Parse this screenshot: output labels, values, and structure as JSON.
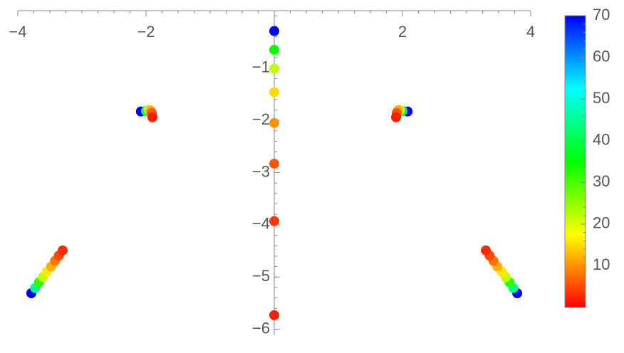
{
  "chart_data": {
    "type": "scatter",
    "xlim": [
      -4,
      4
    ],
    "ylim": [
      -6.1,
      0.1
    ],
    "xticks": [
      {
        "value": -4,
        "label": "−4"
      },
      {
        "value": -2,
        "label": "−2"
      },
      2,
      4
    ],
    "yticks": [
      {
        "value": -1,
        "label": "−1"
      },
      {
        "value": -2,
        "label": "−2"
      },
      {
        "value": -3,
        "label": "−3"
      },
      {
        "value": -4,
        "label": "−4"
      },
      {
        "value": -5,
        "label": "−5"
      },
      {
        "value": -6,
        "label": "−6"
      }
    ],
    "clim": [
      0,
      70
    ],
    "cticks": [
      10,
      20,
      30,
      40,
      50,
      60,
      70
    ],
    "series": [
      {
        "x": [
          0,
          0,
          0,
          0,
          0,
          0,
          0,
          0
        ],
        "y": [
          -0.29,
          -0.65,
          -1.01,
          -1.46,
          -2.05,
          -2.83,
          -3.93,
          -5.73
        ],
        "c": [
          70,
          35,
          22,
          15,
          10,
          6,
          4,
          2
        ]
      },
      {
        "x": [
          -2.08,
          -2.0,
          -1.96,
          -1.93,
          -1.91,
          -1.9
        ],
        "y": [
          -1.83,
          -1.82,
          -1.8,
          -1.81,
          -1.86,
          -1.94
        ],
        "c": [
          70,
          40,
          20,
          12,
          6,
          2
        ]
      },
      {
        "x": [
          2.08,
          2.0,
          1.96,
          1.93,
          1.91,
          1.9
        ],
        "y": [
          -1.83,
          -1.82,
          -1.8,
          -1.81,
          -1.86,
          -1.94
        ],
        "c": [
          70,
          40,
          20,
          12,
          6,
          2
        ]
      },
      {
        "x": [
          -3.79,
          -3.73,
          -3.67,
          -3.61,
          -3.55,
          -3.48,
          -3.42,
          -3.36,
          -3.3
        ],
        "y": [
          -5.31,
          -5.21,
          -5.1,
          -5.0,
          -4.9,
          -4.8,
          -4.69,
          -4.59,
          -4.49
        ],
        "c": [
          70,
          45,
          32,
          22,
          16,
          12,
          8,
          5,
          3
        ]
      },
      {
        "x": [
          3.79,
          3.73,
          3.67,
          3.61,
          3.55,
          3.48,
          3.42,
          3.36,
          3.3
        ],
        "y": [
          -5.31,
          -5.21,
          -5.1,
          -5.0,
          -4.9,
          -4.8,
          -4.69,
          -4.59,
          -4.49
        ],
        "c": [
          70,
          45,
          32,
          22,
          16,
          12,
          8,
          5,
          3
        ]
      }
    ]
  }
}
